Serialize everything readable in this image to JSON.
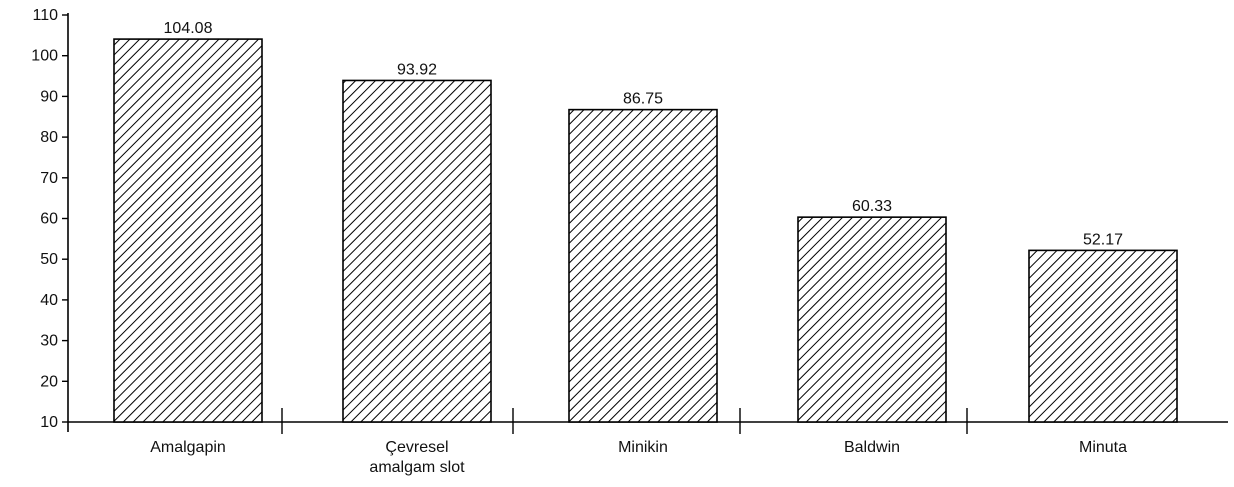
{
  "chart_data": {
    "type": "bar",
    "title": "",
    "xlabel": "",
    "ylabel": "",
    "ylim": [
      10,
      110
    ],
    "yticks": [
      10,
      20,
      30,
      40,
      50,
      60,
      70,
      80,
      90,
      100,
      110
    ],
    "categories": [
      [
        "Amalgapin"
      ],
      [
        "Çevresel",
        "amalgam slot"
      ],
      [
        "Minikin"
      ],
      [
        "Baldwin"
      ],
      [
        "Minuta"
      ]
    ],
    "values": [
      104.08,
      93.92,
      86.75,
      60.33,
      52.17
    ],
    "value_labels": [
      "104.08",
      "93.92",
      "86.75",
      "60.33",
      "52.17"
    ],
    "grid": false,
    "legend": "none",
    "bar_fill": "diagonal-hatch",
    "colors": {
      "bar_stroke": "#000000",
      "hatch": "#000000",
      "background": "#ffffff"
    }
  }
}
